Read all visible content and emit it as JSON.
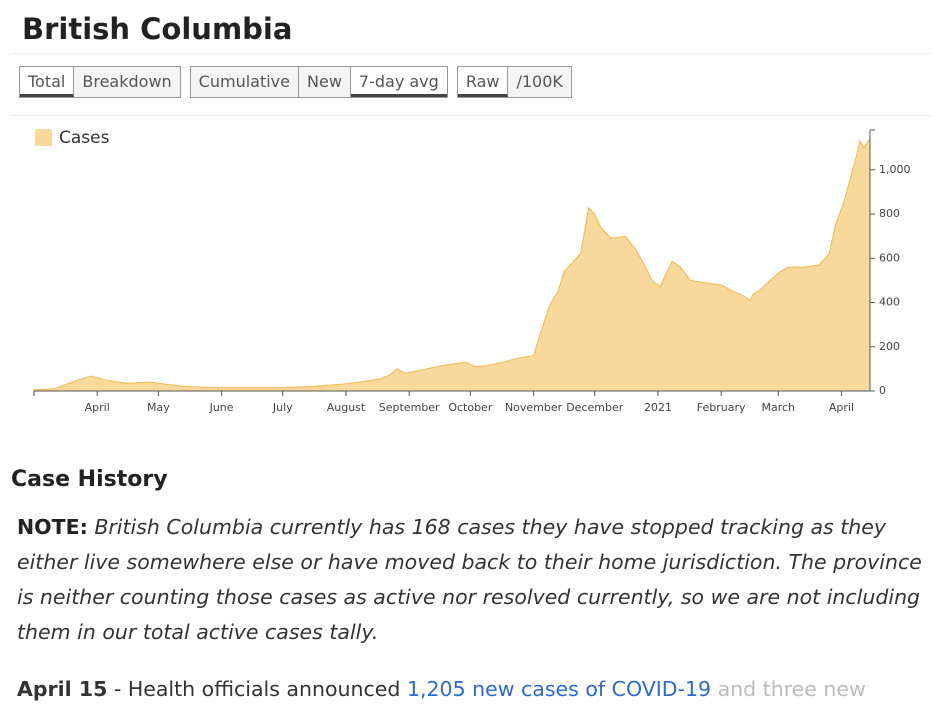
{
  "header": {
    "title": "British Columbia"
  },
  "tabs": {
    "groups": [
      [
        "Total",
        "Breakdown"
      ],
      [
        "Cumulative",
        "New",
        "7-day avg"
      ],
      [
        "Raw",
        "/100K"
      ]
    ],
    "selected": [
      0,
      2,
      0
    ]
  },
  "chart_data": {
    "type": "area",
    "legend": "top-left",
    "x": [
      0,
      10,
      20,
      28,
      35,
      45,
      57,
      65,
      75,
      90,
      105,
      120,
      135,
      150,
      160,
      170,
      175,
      178,
      182,
      190,
      200,
      208,
      212,
      216,
      222,
      230,
      238,
      245,
      248,
      253,
      257,
      260,
      264,
      268,
      270,
      272,
      275,
      278,
      283,
      290,
      295,
      300,
      303,
      307,
      310,
      313,
      317,
      322,
      328,
      337,
      343,
      348,
      351,
      353,
      356,
      361,
      366,
      370,
      378,
      385,
      390,
      393,
      397,
      400,
      403,
      405,
      407,
      410
    ],
    "series": [
      {
        "name": "Cases",
        "color": "#f9d89c",
        "values": [
          5,
          10,
          45,
          68,
          50,
          35,
          40,
          30,
          20,
          15,
          15,
          15,
          20,
          30,
          40,
          55,
          75,
          100,
          80,
          95,
          115,
          125,
          130,
          110,
          115,
          130,
          150,
          160,
          250,
          390,
          450,
          540,
          580,
          620,
          720,
          828,
          800,
          740,
          690,
          700,
          640,
          560,
          500,
          470,
          530,
          586,
          560,
          500,
          490,
          480,
          450,
          430,
          410,
          440,
          455,
          500,
          540,
          560,
          560,
          570,
          620,
          750,
          850,
          950,
          1050,
          1130,
          1100,
          1140
        ]
      }
    ],
    "xlim": [
      0,
      410
    ],
    "xticks": [
      {
        "value": 31,
        "label": "April"
      },
      {
        "value": 61,
        "label": "May"
      },
      {
        "value": 92,
        "label": "June"
      },
      {
        "value": 122,
        "label": "July"
      },
      {
        "value": 153,
        "label": "August"
      },
      {
        "value": 184,
        "label": "September"
      },
      {
        "value": 214,
        "label": "October"
      },
      {
        "value": 245,
        "label": "November"
      },
      {
        "value": 275,
        "label": "December"
      },
      {
        "value": 306,
        "label": "2021"
      },
      {
        "value": 337,
        "label": "February"
      },
      {
        "value": 365,
        "label": "March"
      },
      {
        "value": 396,
        "label": "April"
      }
    ],
    "ylim": [
      0,
      1180
    ],
    "yticks": [
      0,
      200,
      400,
      600,
      800,
      {
        "value": 1000,
        "label": "1,000"
      }
    ]
  },
  "section": {
    "heading": "Case History",
    "note": {
      "label": "NOTE:",
      "text": "British Columbia currently has 168 cases they have stopped tracking as they either live somewhere else or have moved back to their home jurisdiction. The province is neither counting those cases as active nor resolved currently, so we are not including them in our total active cases tally."
    },
    "entry": {
      "date": "April 15",
      "text": "- Health officials announced",
      "link": "1,205 new cases of COVID-19",
      "rest": "and three new"
    }
  }
}
